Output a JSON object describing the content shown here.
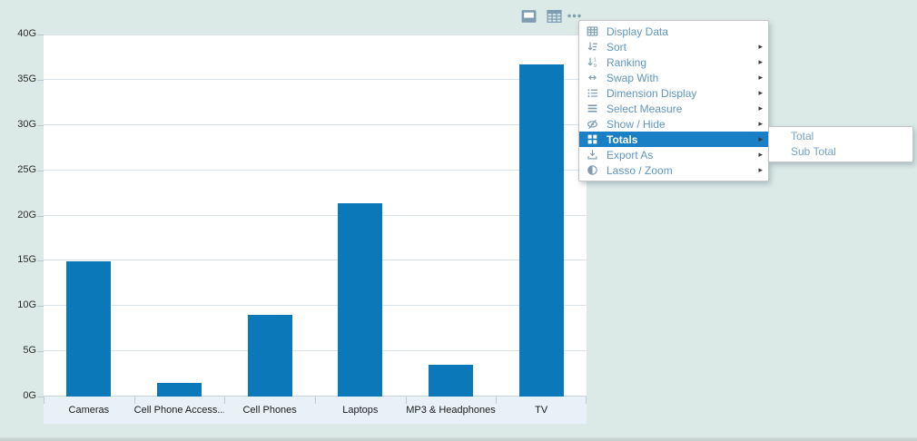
{
  "colors": {
    "bar": "#0b78ba",
    "menu_highlight": "#1980c5",
    "background": "#dbeae7",
    "plot_background": "#ffffff"
  },
  "toolbar": {
    "icons": [
      {
        "name": "panel-icon"
      },
      {
        "name": "table-icon"
      },
      {
        "name": "more-icon"
      }
    ]
  },
  "menu": {
    "items": [
      {
        "label": "Display Data",
        "icon": "table-grid",
        "has_submenu": false,
        "highlighted": false
      },
      {
        "label": "Sort",
        "icon": "sort",
        "has_submenu": true,
        "highlighted": false
      },
      {
        "label": "Ranking",
        "icon": "ranking",
        "has_submenu": true,
        "highlighted": false
      },
      {
        "label": "Swap With",
        "icon": "swap",
        "has_submenu": true,
        "highlighted": false
      },
      {
        "label": "Dimension Display",
        "icon": "list",
        "has_submenu": true,
        "highlighted": false
      },
      {
        "label": "Select Measure",
        "icon": "lines",
        "has_submenu": true,
        "highlighted": false
      },
      {
        "label": "Show / Hide",
        "icon": "eye",
        "has_submenu": true,
        "highlighted": false
      },
      {
        "label": "Totals",
        "icon": "grid-squares",
        "has_submenu": true,
        "highlighted": true
      },
      {
        "label": "Export As",
        "icon": "download",
        "has_submenu": true,
        "highlighted": false
      },
      {
        "label": "Lasso / Zoom",
        "icon": "half-circle",
        "has_submenu": true,
        "highlighted": false
      }
    ]
  },
  "submenu": {
    "items": [
      {
        "label": "Total"
      },
      {
        "label": "Sub Total"
      }
    ]
  },
  "chart_data": {
    "type": "bar",
    "categories": [
      "Cameras",
      "Cell Phone Access...",
      "Cell Phones",
      "Laptops",
      "MP3 & Headphones",
      "TV"
    ],
    "values": [
      14.9,
      1.5,
      9.0,
      21.4,
      3.5,
      36.7
    ],
    "unit": "G",
    "title": "",
    "xlabel": "",
    "ylabel": "",
    "ylim": [
      0,
      40
    ],
    "y_tick_labels": [
      "0G",
      "5G",
      "10G",
      "15G",
      "20G",
      "25G",
      "30G",
      "35G",
      "40G"
    ],
    "y_tick_step": 5,
    "grid": true,
    "legend": "none",
    "bar_color": "#0b78ba"
  }
}
